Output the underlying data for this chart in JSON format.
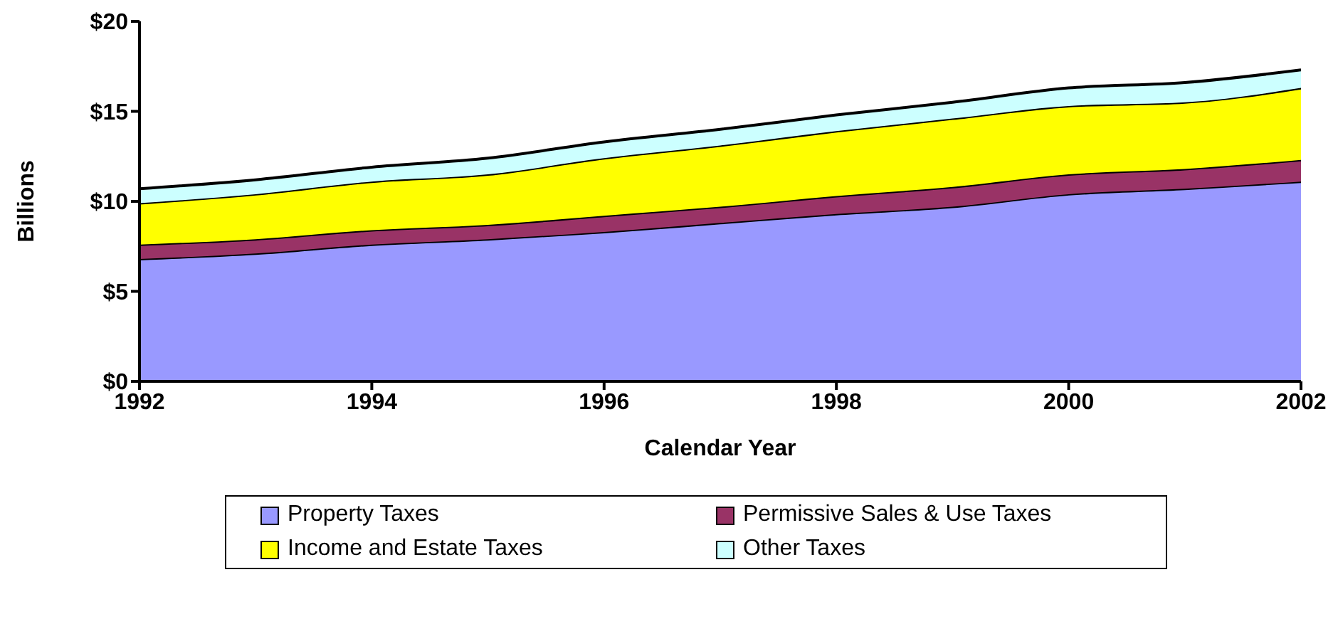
{
  "chart_data": {
    "type": "area",
    "stacked": true,
    "xlabel": "Calendar Year",
    "ylabel": "Billions",
    "x": [
      1992,
      1993,
      1994,
      1995,
      1996,
      1997,
      1998,
      1999,
      2000,
      2001,
      2002
    ],
    "xlim": [
      1992,
      2002
    ],
    "xticks": [
      1992,
      1994,
      1996,
      1998,
      2000,
      2002
    ],
    "ylim": [
      0,
      20
    ],
    "yticks": [
      {
        "value": 0,
        "label": "$0"
      },
      {
        "value": 5,
        "label": "$5"
      },
      {
        "value": 10,
        "label": "$10"
      },
      {
        "value": 15,
        "label": "$15"
      },
      {
        "value": 20,
        "label": "$20"
      }
    ],
    "grid": false,
    "legend": "bottom",
    "series": [
      {
        "name": "Property Taxes",
        "color": "#9999ff",
        "values": [
          6.8,
          7.1,
          7.6,
          7.9,
          8.3,
          8.8,
          9.3,
          9.7,
          10.4,
          10.7,
          11.1
        ]
      },
      {
        "name": "Permissive Sales & Use Taxes",
        "color": "#993366",
        "values": [
          0.8,
          0.8,
          0.8,
          0.8,
          0.9,
          0.9,
          1.0,
          1.1,
          1.1,
          1.1,
          1.2
        ]
      },
      {
        "name": "Income and Estate Taxes",
        "color": "#ffff00",
        "values": [
          2.3,
          2.5,
          2.7,
          2.8,
          3.2,
          3.4,
          3.6,
          3.8,
          3.8,
          3.7,
          4.0
        ]
      },
      {
        "name": "Other Taxes",
        "color": "#ccffff",
        "values": [
          0.8,
          0.8,
          0.8,
          0.9,
          0.9,
          0.9,
          0.9,
          0.9,
          1.0,
          1.1,
          1.0
        ]
      }
    ]
  }
}
